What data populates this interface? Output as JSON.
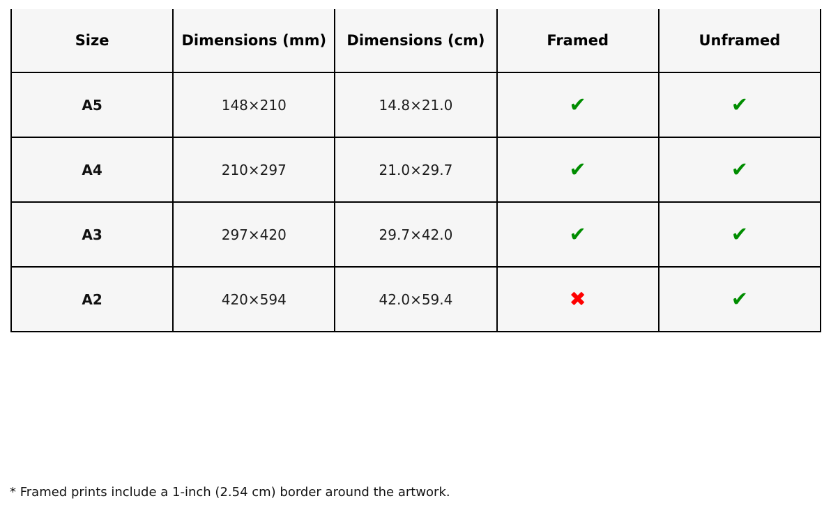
{
  "colors": {
    "page_bg": "#ffffff",
    "cell_bg": "#f6f6f6",
    "border": "#000000",
    "header_text": "#000000",
    "cell_text": "#1c1c1c",
    "check_green": "#008d00",
    "cross_red": "#fe0000"
  },
  "icons": {
    "check": "✔",
    "cross": "✖"
  },
  "table": {
    "columns": [
      {
        "key": "size",
        "label": "Size"
      },
      {
        "key": "mm",
        "label": "Dimensions (mm)"
      },
      {
        "key": "cm",
        "label": "Dimensions (cm)"
      },
      {
        "key": "framed",
        "label": "Framed"
      },
      {
        "key": "unframed",
        "label": "Unframed"
      }
    ],
    "rows": [
      {
        "size": "A5",
        "mm": "148×210",
        "cm": "14.8×21.0",
        "framed": "check",
        "unframed": "check"
      },
      {
        "size": "A4",
        "mm": "210×297",
        "cm": "21.0×29.7",
        "framed": "check",
        "unframed": "check"
      },
      {
        "size": "A3",
        "mm": "297×420",
        "cm": "29.7×42.0",
        "framed": "check",
        "unframed": "check"
      },
      {
        "size": "A2",
        "mm": "420×594",
        "cm": "42.0×59.4",
        "framed": "cross",
        "unframed": "check"
      }
    ]
  },
  "footnote": "* Framed prints include a 1-inch (2.54 cm) border around the artwork."
}
